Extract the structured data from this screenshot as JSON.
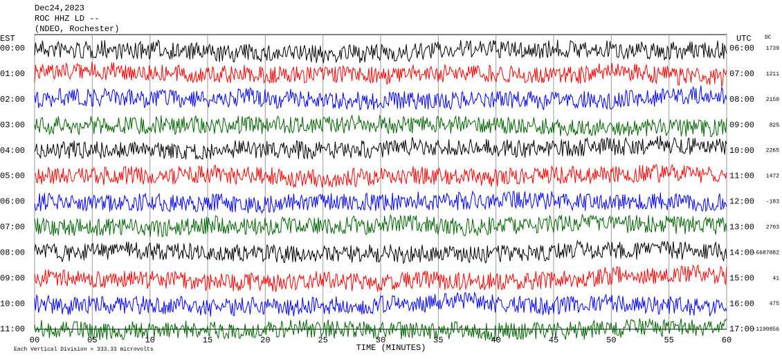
{
  "chart_data": {
    "type": "helicorder",
    "title": [
      "Dec24,2023",
      "ROC HHZ LD --",
      "(NDEO, Rochester)"
    ],
    "left_label": "EST",
    "right_label": "UTC",
    "dc_label": "DC",
    "xlabel": "TIME (MINUTES)",
    "footer": "Each Vertical Division = 333.33 microvolts",
    "xlim": [
      0,
      60
    ],
    "xticks": [
      {
        "value": 0,
        "label": "00"
      },
      {
        "value": 5,
        "label": "05"
      },
      10,
      15,
      20,
      25,
      30,
      35,
      40,
      45,
      50,
      55,
      60
    ],
    "rows": [
      {
        "est": "00:00",
        "utc": "06:00",
        "dc": 1739,
        "color": "#000000"
      },
      {
        "est": "01:00",
        "utc": "07:00",
        "dc": 1211,
        "color": "#ff0000"
      },
      {
        "est": "02:00",
        "utc": "08:00",
        "dc": 2150,
        "color": "#0000ff"
      },
      {
        "est": "03:00",
        "utc": "09:00",
        "dc": 825,
        "color": "#006400"
      },
      {
        "est": "04:00",
        "utc": "10:00",
        "dc": 2265,
        "color": "#000000"
      },
      {
        "est": "05:00",
        "utc": "11:00",
        "dc": 1472,
        "color": "#ff0000"
      },
      {
        "est": "06:00",
        "utc": "12:00",
        "dc": -183,
        "color": "#0000ff"
      },
      {
        "est": "07:00",
        "utc": "13:00",
        "dc": 2703,
        "color": "#006400"
      },
      {
        "est": "08:00",
        "utc": "14:00",
        "dc": -6687082,
        "color": "#000000"
      },
      {
        "est": "09:00",
        "utc": "15:00",
        "dc": 41,
        "color": "#ff0000"
      },
      {
        "est": "10:00",
        "utc": "16:00",
        "dc": 475,
        "color": "#0000ff"
      },
      {
        "est": "11:00",
        "utc": "17:00",
        "dc": -1190856,
        "color": "#006400"
      }
    ]
  }
}
